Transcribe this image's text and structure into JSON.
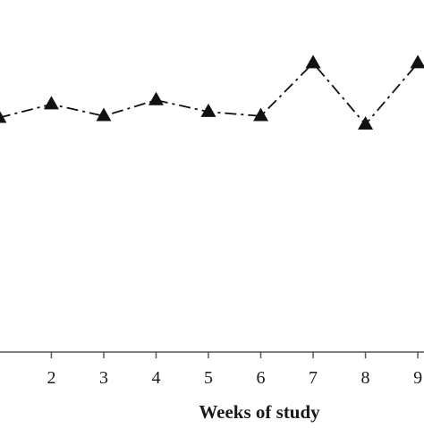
{
  "chart_data": {
    "type": "line",
    "title": "",
    "xlabel": "Weeks of study",
    "ylabel": "",
    "x": [
      1,
      2,
      3,
      4,
      5,
      6,
      7,
      8,
      9
    ],
    "x_ticks": [
      "2",
      "3",
      "4",
      "5",
      "6",
      "7",
      "8",
      "9"
    ],
    "series": [
      {
        "values": [
          5.58,
          5.9,
          5.62,
          6.0,
          5.72,
          5.62,
          6.88,
          5.42,
          6.88
        ],
        "line_style": "dash-dot",
        "marker": "filled-triangle",
        "color": "#111111"
      }
    ],
    "xlim": [
      0.95,
      9.05
    ],
    "ylim": [
      0,
      8
    ],
    "grid": false,
    "legend": "none"
  }
}
